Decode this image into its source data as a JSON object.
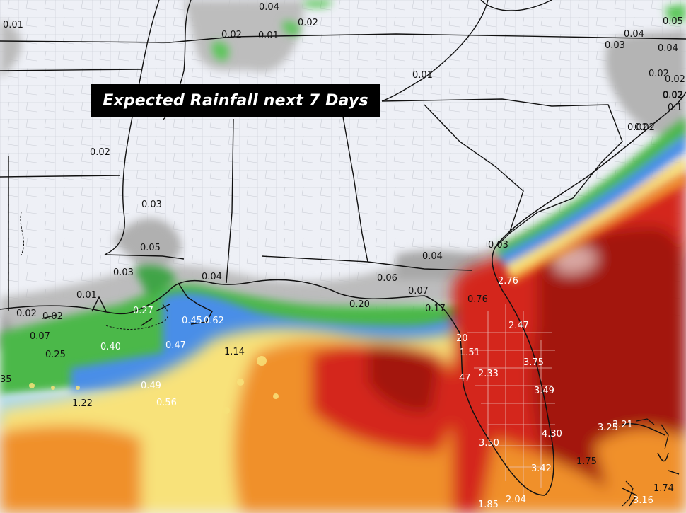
{
  "map": {
    "title": "Expected Rainfall next 7 Days",
    "colors": {
      "background": "#eef0f6",
      "state_border": "#111111",
      "county_border": "#b9bcc6",
      "gray_light": "#b9b9b9",
      "gray_dark": "#8c8c8c",
      "green": "#4cb84a",
      "blue": "#4a8ee8",
      "light_blue": "#a9d8ef",
      "yellow": "#f8e27a",
      "orange": "#f0902c",
      "red": "#d4261a",
      "dark_red": "#a3140e",
      "pink": "#d9a7a2"
    },
    "labels": [
      {
        "id": "l01",
        "text": "0.01"
      },
      {
        "id": "l02",
        "text": "0.04"
      },
      {
        "id": "l03",
        "text": "0.02"
      },
      {
        "id": "l04",
        "text": "0.02"
      },
      {
        "id": "l05",
        "text": "0.01"
      },
      {
        "id": "l06",
        "text": "0.05"
      },
      {
        "id": "l07",
        "text": "0.04"
      },
      {
        "id": "l08",
        "text": "0.03"
      },
      {
        "id": "l09",
        "text": "0.04"
      },
      {
        "id": "l10",
        "text": "0.02"
      },
      {
        "id": "l11",
        "text": "0.02"
      },
      {
        "id": "l12",
        "text": "0.01"
      },
      {
        "id": "l13",
        "text": "0.02"
      },
      {
        "id": "l14",
        "text": "0.02"
      },
      {
        "id": "l15",
        "text": "0.03"
      },
      {
        "id": "l16",
        "text": "0.05"
      },
      {
        "id": "l17",
        "text": "0.03"
      },
      {
        "id": "l18",
        "text": "0.04"
      },
      {
        "id": "l19",
        "text": "0.01"
      },
      {
        "id": "l20",
        "text": "0.02"
      },
      {
        "id": "l21",
        "text": "0.02"
      },
      {
        "id": "l22",
        "text": "0.04"
      },
      {
        "id": "l23",
        "text": "0.06"
      },
      {
        "id": "l24",
        "text": "0.07"
      },
      {
        "id": "l25",
        "text": "0.20"
      },
      {
        "id": "l26",
        "text": "0.17"
      },
      {
        "id": "l27",
        "text": "0.76"
      },
      {
        "id": "l28",
        "text": "2.76"
      },
      {
        "id": "l29",
        "text": "0.07"
      },
      {
        "id": "l30",
        "text": "0.25"
      },
      {
        "id": "l31",
        "text": "0.40"
      },
      {
        "id": "l32",
        "text": "0.27"
      },
      {
        "id": "l33",
        "text": "0.45"
      },
      {
        "id": "l34",
        "text": "0.62"
      },
      {
        "id": "l35",
        "text": "0.47"
      },
      {
        "id": "l36",
        "text": "1.14"
      },
      {
        "id": "l37",
        "text": "0.49"
      },
      {
        "id": "l38",
        "text": "0.56"
      },
      {
        "id": "l39",
        "text": "1.22"
      },
      {
        "id": "l40",
        "text": "35"
      },
      {
        "id": "l41",
        "text": "20"
      },
      {
        "id": "l42",
        "text": "1.51"
      },
      {
        "id": "l43",
        "text": "2.47"
      },
      {
        "id": "l44",
        "text": "2.33"
      },
      {
        "id": "l45",
        "text": "3.75"
      },
      {
        "id": "l46",
        "text": "47"
      },
      {
        "id": "l47",
        "text": "3.49"
      },
      {
        "id": "l48",
        "text": "4.30"
      },
      {
        "id": "l49",
        "text": "3.50"
      },
      {
        "id": "l50",
        "text": "3.42"
      },
      {
        "id": "l51",
        "text": "3.25"
      },
      {
        "id": "l52",
        "text": "3.21"
      },
      {
        "id": "l53",
        "text": "1.75"
      },
      {
        "id": "l54",
        "text": "1.74"
      },
      {
        "id": "l55",
        "text": "3.16"
      },
      {
        "id": "l56",
        "text": "1.85"
      },
      {
        "id": "l57",
        "text": "2.04"
      },
      {
        "id": "l58",
        "text": "0.1"
      },
      {
        "id": "l59",
        "text": "0.02"
      },
      {
        "id": "l60",
        "text": "0.02"
      },
      {
        "id": "l61",
        "text": "0.03"
      },
      {
        "id": "l62",
        "text": "0.02"
      }
    ]
  }
}
